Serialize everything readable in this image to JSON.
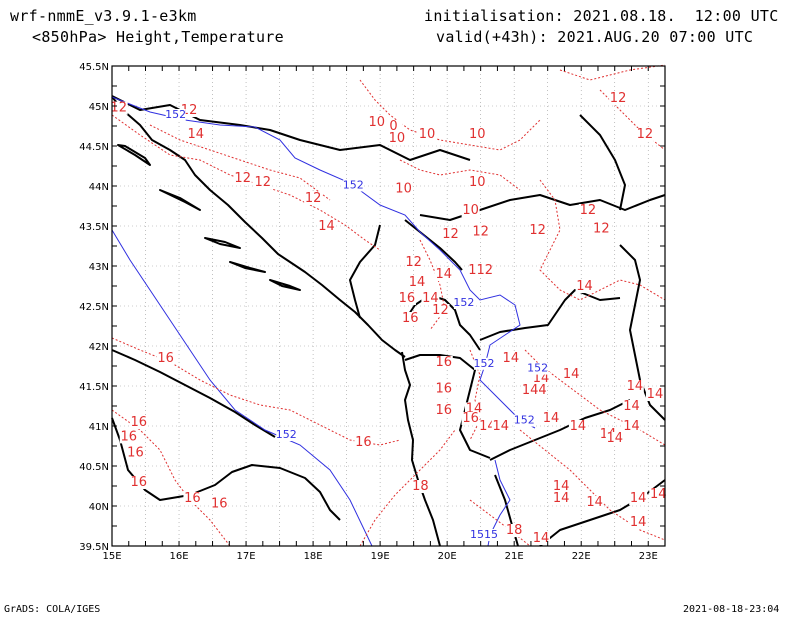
{
  "header": {
    "model": "wrf-nmmE_v3.9.1-e3km",
    "fields": "<850hPa> Height,Temperature",
    "init": "initialisation: 2021.08.18.  12:00 UTC",
    "valid": "valid(+43h): 2021.AUG.20 07:00 UTC"
  },
  "footer": {
    "left": "GrADS: COLA/IGES",
    "right": "2021-08-18-23:04"
  },
  "map": {
    "lon_range": [
      15,
      23.25
    ],
    "lat_range": [
      39.5,
      45.5
    ],
    "x_ticks": [
      "15E",
      "16E",
      "17E",
      "18E",
      "19E",
      "20E",
      "21E",
      "22E",
      "23E"
    ],
    "y_ticks": [
      "39.5N",
      "40N",
      "40.5N",
      "41N",
      "41.5N",
      "42N",
      "42.5N",
      "43N",
      "43.5N",
      "44N",
      "44.5N",
      "45N",
      "45.5N"
    ],
    "height_contour_color": "#3030e0",
    "temperature_contour_color": "#e03030",
    "height_labels": [
      {
        "text": "152",
        "lon": 15.95,
        "lat": 44.85
      },
      {
        "text": "152",
        "lon": 18.6,
        "lat": 43.97
      },
      {
        "text": "152",
        "lon": 20.25,
        "lat": 42.5
      },
      {
        "text": "152",
        "lon": 20.55,
        "lat": 41.74
      },
      {
        "text": "152",
        "lon": 21.35,
        "lat": 41.68
      },
      {
        "text": "152",
        "lon": 21.15,
        "lat": 41.03
      },
      {
        "text": "152",
        "lon": 17.6,
        "lat": 40.85
      },
      {
        "text": "1515",
        "lon": 20.55,
        "lat": 39.6
      }
    ],
    "temp_labels": [
      {
        "text": "12",
        "lon": 15.1,
        "lat": 44.93
      },
      {
        "text": "12",
        "lon": 16.15,
        "lat": 44.9
      },
      {
        "text": "14",
        "lon": 16.25,
        "lat": 44.6
      },
      {
        "text": "12",
        "lon": 16.95,
        "lat": 44.05
      },
      {
        "text": "12",
        "lon": 17.25,
        "lat": 44.0
      },
      {
        "text": "12",
        "lon": 18.0,
        "lat": 43.8
      },
      {
        "text": "14",
        "lon": 18.2,
        "lat": 43.45
      },
      {
        "text": "10",
        "lon": 18.95,
        "lat": 44.75
      },
      {
        "text": "0",
        "lon": 19.2,
        "lat": 44.7
      },
      {
        "text": "10",
        "lon": 19.25,
        "lat": 44.55
      },
      {
        "text": "10",
        "lon": 19.7,
        "lat": 44.6
      },
      {
        "text": "10",
        "lon": 20.45,
        "lat": 44.6
      },
      {
        "text": "10",
        "lon": 20.45,
        "lat": 44.0
      },
      {
        "text": "10",
        "lon": 19.35,
        "lat": 43.92
      },
      {
        "text": "10",
        "lon": 20.35,
        "lat": 43.65
      },
      {
        "text": "12",
        "lon": 22.55,
        "lat": 45.05
      },
      {
        "text": "12",
        "lon": 22.95,
        "lat": 44.6
      },
      {
        "text": "12",
        "lon": 22.1,
        "lat": 43.65
      },
      {
        "text": "12",
        "lon": 22.3,
        "lat": 43.42
      },
      {
        "text": "12",
        "lon": 20.05,
        "lat": 43.35
      },
      {
        "text": "12",
        "lon": 20.5,
        "lat": 43.38
      },
      {
        "text": "12",
        "lon": 21.35,
        "lat": 43.4
      },
      {
        "text": "12",
        "lon": 19.5,
        "lat": 43.0
      },
      {
        "text": "14",
        "lon": 19.55,
        "lat": 42.75
      },
      {
        "text": "14",
        "lon": 19.95,
        "lat": 42.85
      },
      {
        "text": "112",
        "lon": 20.5,
        "lat": 42.9
      },
      {
        "text": "16",
        "lon": 19.4,
        "lat": 42.55
      },
      {
        "text": "14",
        "lon": 19.75,
        "lat": 42.55
      },
      {
        "text": "16",
        "lon": 19.45,
        "lat": 42.3
      },
      {
        "text": "12",
        "lon": 19.9,
        "lat": 42.4
      },
      {
        "text": "14",
        "lon": 22.05,
        "lat": 42.7
      },
      {
        "text": "14",
        "lon": 20.95,
        "lat": 41.8
      },
      {
        "text": "14",
        "lon": 21.4,
        "lat": 41.55
      },
      {
        "text": "144",
        "lon": 21.3,
        "lat": 41.4
      },
      {
        "text": "14",
        "lon": 21.85,
        "lat": 41.6
      },
      {
        "text": "14",
        "lon": 22.8,
        "lat": 41.45
      },
      {
        "text": "14",
        "lon": 23.1,
        "lat": 41.35
      },
      {
        "text": "14",
        "lon": 22.75,
        "lat": 41.2
      },
      {
        "text": "14",
        "lon": 22.75,
        "lat": 40.95
      },
      {
        "text": "14",
        "lon": 21.55,
        "lat": 41.05
      },
      {
        "text": "14",
        "lon": 21.95,
        "lat": 40.95
      },
      {
        "text": "14",
        "lon": 22.4,
        "lat": 40.85
      },
      {
        "text": "14",
        "lon": 22.5,
        "lat": 40.8
      },
      {
        "text": "16",
        "lon": 19.95,
        "lat": 41.75
      },
      {
        "text": "16",
        "lon": 19.95,
        "lat": 41.42
      },
      {
        "text": "14",
        "lon": 20.4,
        "lat": 41.17
      },
      {
        "text": "16",
        "lon": 19.95,
        "lat": 41.15
      },
      {
        "text": "16",
        "lon": 20.35,
        "lat": 41.05
      },
      {
        "text": "14",
        "lon": 20.6,
        "lat": 40.95
      },
      {
        "text": "14",
        "lon": 20.8,
        "lat": 40.95
      },
      {
        "text": "16",
        "lon": 15.8,
        "lat": 41.8
      },
      {
        "text": "16",
        "lon": 15.4,
        "lat": 41.0
      },
      {
        "text": "16",
        "lon": 15.25,
        "lat": 40.82
      },
      {
        "text": "16",
        "lon": 15.35,
        "lat": 40.62
      },
      {
        "text": "16",
        "lon": 15.4,
        "lat": 40.25
      },
      {
        "text": "16",
        "lon": 16.2,
        "lat": 40.05
      },
      {
        "text": "16",
        "lon": 16.6,
        "lat": 39.98
      },
      {
        "text": "16",
        "lon": 18.75,
        "lat": 40.75
      },
      {
        "text": "18",
        "lon": 19.6,
        "lat": 40.2
      },
      {
        "text": "18",
        "lon": 21.0,
        "lat": 39.65
      },
      {
        "text": "14",
        "lon": 21.4,
        "lat": 39.55
      },
      {
        "text": "14",
        "lon": 21.7,
        "lat": 40.2
      },
      {
        "text": "14",
        "lon": 21.7,
        "lat": 40.05
      },
      {
        "text": "14",
        "lon": 22.2,
        "lat": 40.0
      },
      {
        "text": "14",
        "lon": 22.85,
        "lat": 40.05
      },
      {
        "text": "14",
        "lon": 23.15,
        "lat": 40.1
      },
      {
        "text": "14",
        "lon": 22.85,
        "lat": 39.75
      }
    ]
  }
}
